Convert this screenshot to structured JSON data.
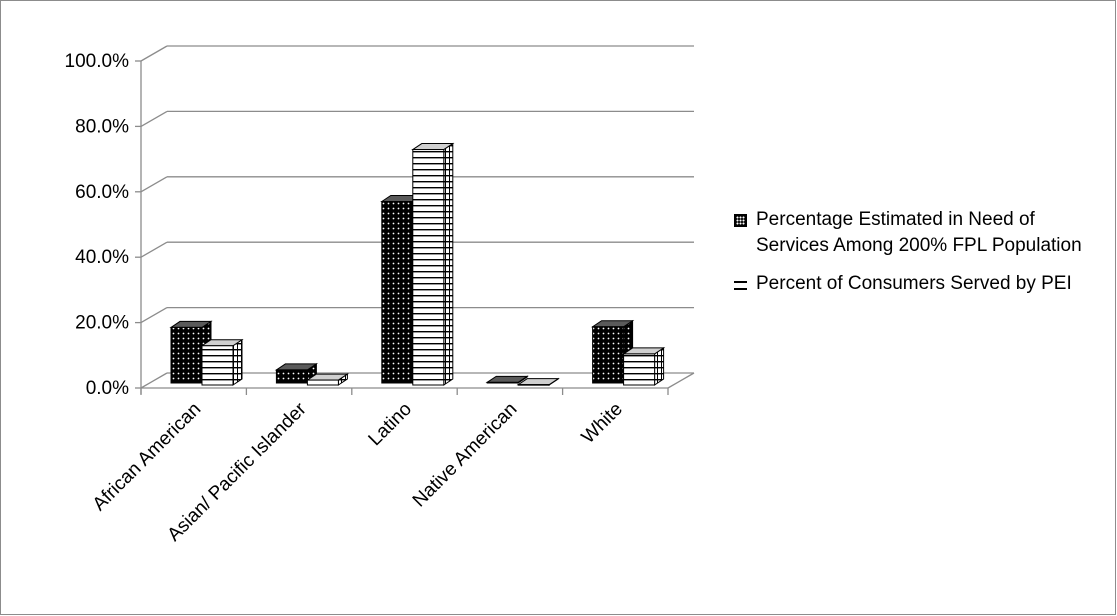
{
  "chart_data": {
    "type": "bar",
    "categories": [
      "African American",
      "Asian/ Pacific Islander",
      "Latino",
      "Native American",
      "White"
    ],
    "series": [
      {
        "name": "Percentage Estimated in Need of Services Among 200% FPL Population",
        "values": [
          17.0,
          4.0,
          55.5,
          0.2,
          17.2
        ],
        "pattern": "dots"
      },
      {
        "name": "Percent of Consumers Served by PEI",
        "values": [
          12.0,
          1.5,
          72.0,
          0.1,
          9.5
        ],
        "pattern": "horizontal-lines"
      }
    ],
    "yticks": [
      "0.0%",
      "20.0%",
      "40.0%",
      "60.0%",
      "80.0%",
      "100.0%"
    ],
    "ylim": [
      0,
      100
    ],
    "grid": true,
    "legend_position": "right",
    "title": "",
    "xlabel": "",
    "ylabel": ""
  },
  "legend": {
    "items": [
      "Percentage Estimated in Need of Services Among 200% FPL Population",
      "Percent of Consumers Served by PEI"
    ]
  }
}
